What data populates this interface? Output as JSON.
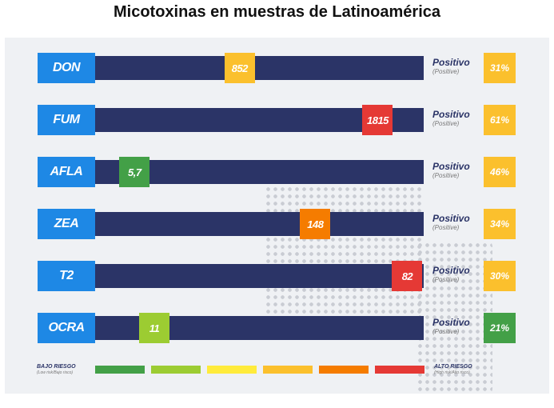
{
  "chart_data": {
    "type": "bar",
    "title": "Micotoxinas en muestras de Latinoamérica",
    "categories": [
      "DON",
      "FUM",
      "AFLA",
      "ZEA",
      "T2",
      "OCRA"
    ],
    "marker_labels": [
      "852",
      "1815",
      "5,7",
      "148",
      "82",
      "11"
    ],
    "marker_positions": [
      0.44,
      0.86,
      0.12,
      0.67,
      0.95,
      0.18
    ],
    "marker_colors": [
      "#fbc02d",
      "#e53935",
      "#43a047",
      "#f57c00",
      "#e53935",
      "#9ccc32"
    ],
    "status_labels": [
      "Positivo",
      "Positivo",
      "Positivo",
      "Positivo",
      "Positivo",
      "Positivo"
    ],
    "status_en": [
      "(Positive)",
      "(Positive)",
      "(Positive)",
      "(Positive)",
      "(Positive)",
      "(Positive)"
    ],
    "percent_labels": [
      "31%",
      "61%",
      "46%",
      "34%",
      "30%",
      "21%"
    ],
    "percent_values": [
      31,
      61,
      46,
      34,
      30,
      21
    ],
    "percent_colors": [
      "#fbc02d",
      "#fbc02d",
      "#fbc02d",
      "#fbc02d",
      "#fbc02d",
      "#43a047"
    ],
    "legend": {
      "low": "BAJO RIESGO",
      "low_en": "(Low risk/Bajo risco)",
      "high": "ALTO RIESGO",
      "high_en": "(High risk/Alto risco)",
      "scale_colors": [
        "#43a047",
        "#9ccc32",
        "#ffeb3b",
        "#fbc02d",
        "#f57c00",
        "#e53935"
      ]
    }
  }
}
